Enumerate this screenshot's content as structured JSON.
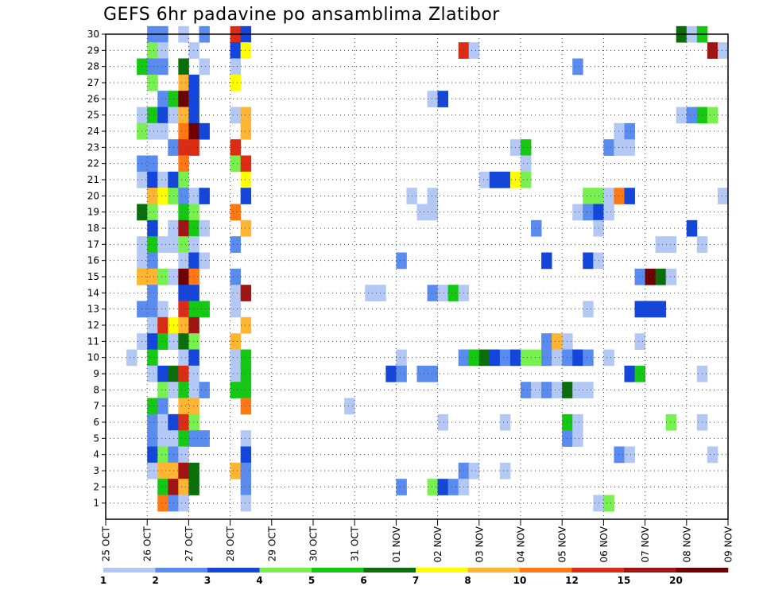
{
  "chart_data": {
    "type": "heatmap",
    "title": "GEFS 6hr padavine po ansamblima Zlatibor",
    "xlabel": "",
    "ylabel": "",
    "x_tick_labels": [
      "25 OCT",
      "26 OCT",
      "27 OCT",
      "28 OCT",
      "29 OCT",
      "30 OCT",
      "31 OCT",
      "01 NOV",
      "02 NOV",
      "03 NOV",
      "04 NOV",
      "05 NOV",
      "06 NOV",
      "07 NOV",
      "08 NOV",
      "09 NOV"
    ],
    "y_tick_labels": [
      "1",
      "2",
      "3",
      "4",
      "5",
      "6",
      "7",
      "8",
      "9",
      "10",
      "11",
      "12",
      "13",
      "14",
      "15",
      "16",
      "17",
      "18",
      "19",
      "20",
      "21",
      "22",
      "23",
      "24",
      "25",
      "26",
      "27",
      "28",
      "29",
      "30"
    ],
    "x_steps_per_day": 4,
    "n_steps": 60,
    "y_range": [
      0,
      30
    ],
    "grid": true,
    "legend_position": "bottom",
    "levels": [
      1,
      2,
      3,
      4,
      5,
      6,
      7,
      8,
      10,
      12,
      15,
      20
    ],
    "level_labels": [
      "1",
      "2",
      "3",
      "4",
      "5",
      "6",
      "7",
      "8",
      "10",
      "12",
      "15",
      "20"
    ],
    "colors": [
      "#b4c8f5",
      "#5a8cf0",
      "#1446dc",
      "#78f050",
      "#14c814",
      "#0a6e0a",
      "#ffff00",
      "#ffb432",
      "#ff7814",
      "#dc2d14",
      "#a01414",
      "#6e0000"
    ],
    "cells_note": "each cell: [step, member, class]; step = 6-hour index from 25 OCT 00Z, class = colour index 0-11",
    "cells": [
      [
        4,
        30,
        1
      ],
      [
        5,
        30,
        1
      ],
      [
        7,
        30,
        0
      ],
      [
        9,
        30,
        1
      ],
      [
        12,
        30,
        9
      ],
      [
        13,
        30,
        2
      ],
      [
        55,
        30,
        5
      ],
      [
        56,
        30,
        0
      ],
      [
        57,
        30,
        4
      ],
      [
        4,
        29,
        3
      ],
      [
        5,
        29,
        0
      ],
      [
        8,
        29,
        0
      ],
      [
        12,
        29,
        2
      ],
      [
        13,
        29,
        6
      ],
      [
        34,
        29,
        9
      ],
      [
        35,
        29,
        0
      ],
      [
        58,
        29,
        10
      ],
      [
        59,
        29,
        0
      ],
      [
        3,
        28,
        4
      ],
      [
        4,
        28,
        1
      ],
      [
        5,
        28,
        1
      ],
      [
        7,
        28,
        5
      ],
      [
        9,
        28,
        0
      ],
      [
        12,
        28,
        0
      ],
      [
        45,
        28,
        1
      ],
      [
        4,
        27,
        3
      ],
      [
        7,
        27,
        7
      ],
      [
        8,
        27,
        2
      ],
      [
        12,
        27,
        6
      ],
      [
        5,
        26,
        1
      ],
      [
        6,
        26,
        4
      ],
      [
        7,
        26,
        11
      ],
      [
        8,
        26,
        2
      ],
      [
        31,
        26,
        0
      ],
      [
        32,
        26,
        2
      ],
      [
        3,
        25,
        0
      ],
      [
        4,
        25,
        4
      ],
      [
        5,
        25,
        2
      ],
      [
        6,
        25,
        0
      ],
      [
        7,
        25,
        7
      ],
      [
        8,
        25,
        2
      ],
      [
        12,
        25,
        0
      ],
      [
        13,
        25,
        7
      ],
      [
        55,
        25,
        0
      ],
      [
        56,
        25,
        1
      ],
      [
        57,
        25,
        4
      ],
      [
        58,
        25,
        3
      ],
      [
        3,
        24,
        3
      ],
      [
        4,
        24,
        0
      ],
      [
        5,
        24,
        0
      ],
      [
        7,
        24,
        8
      ],
      [
        8,
        24,
        11
      ],
      [
        9,
        24,
        2
      ],
      [
        13,
        24,
        7
      ],
      [
        49,
        24,
        0
      ],
      [
        50,
        24,
        1
      ],
      [
        6,
        23,
        1
      ],
      [
        7,
        23,
        9
      ],
      [
        8,
        23,
        9
      ],
      [
        12,
        23,
        9
      ],
      [
        39,
        23,
        0
      ],
      [
        40,
        23,
        4
      ],
      [
        48,
        23,
        1
      ],
      [
        49,
        23,
        0
      ],
      [
        50,
        23,
        0
      ],
      [
        3,
        22,
        1
      ],
      [
        4,
        22,
        1
      ],
      [
        7,
        22,
        8
      ],
      [
        12,
        22,
        3
      ],
      [
        13,
        22,
        9
      ],
      [
        40,
        22,
        0
      ],
      [
        3,
        21,
        0
      ],
      [
        4,
        21,
        2
      ],
      [
        5,
        21,
        0
      ],
      [
        6,
        21,
        2
      ],
      [
        7,
        21,
        3
      ],
      [
        13,
        21,
        6
      ],
      [
        36,
        21,
        0
      ],
      [
        37,
        21,
        2
      ],
      [
        38,
        21,
        2
      ],
      [
        39,
        21,
        6
      ],
      [
        40,
        21,
        3
      ],
      [
        4,
        20,
        7
      ],
      [
        5,
        20,
        6
      ],
      [
        6,
        20,
        3
      ],
      [
        7,
        20,
        1
      ],
      [
        8,
        20,
        0
      ],
      [
        9,
        20,
        2
      ],
      [
        13,
        20,
        2
      ],
      [
        29,
        20,
        0
      ],
      [
        31,
        20,
        0
      ],
      [
        46,
        20,
        3
      ],
      [
        47,
        20,
        3
      ],
      [
        48,
        20,
        0
      ],
      [
        49,
        20,
        8
      ],
      [
        50,
        20,
        2
      ],
      [
        59,
        20,
        0
      ],
      [
        3,
        19,
        5
      ],
      [
        4,
        19,
        3
      ],
      [
        7,
        19,
        4
      ],
      [
        8,
        19,
        3
      ],
      [
        12,
        19,
        8
      ],
      [
        30,
        19,
        0
      ],
      [
        31,
        19,
        0
      ],
      [
        45,
        19,
        0
      ],
      [
        46,
        19,
        1
      ],
      [
        47,
        19,
        2
      ],
      [
        48,
        19,
        0
      ],
      [
        4,
        18,
        2
      ],
      [
        6,
        18,
        0
      ],
      [
        7,
        18,
        10
      ],
      [
        8,
        18,
        4
      ],
      [
        9,
        18,
        0
      ],
      [
        13,
        18,
        7
      ],
      [
        41,
        18,
        1
      ],
      [
        47,
        18,
        0
      ],
      [
        56,
        18,
        2
      ],
      [
        3,
        17,
        0
      ],
      [
        4,
        17,
        4
      ],
      [
        5,
        17,
        0
      ],
      [
        6,
        17,
        0
      ],
      [
        7,
        17,
        3
      ],
      [
        8,
        17,
        0
      ],
      [
        12,
        17,
        1
      ],
      [
        53,
        17,
        0
      ],
      [
        54,
        17,
        0
      ],
      [
        57,
        17,
        0
      ],
      [
        3,
        16,
        0
      ],
      [
        4,
        16,
        1
      ],
      [
        7,
        16,
        0
      ],
      [
        8,
        16,
        2
      ],
      [
        9,
        16,
        0
      ],
      [
        28,
        16,
        1
      ],
      [
        42,
        16,
        2
      ],
      [
        46,
        16,
        2
      ],
      [
        47,
        16,
        0
      ],
      [
        3,
        15,
        7
      ],
      [
        4,
        15,
        7
      ],
      [
        5,
        15,
        3
      ],
      [
        6,
        15,
        0
      ],
      [
        7,
        15,
        11
      ],
      [
        8,
        15,
        8
      ],
      [
        12,
        15,
        1
      ],
      [
        51,
        15,
        1
      ],
      [
        52,
        15,
        11
      ],
      [
        53,
        15,
        5
      ],
      [
        54,
        15,
        0
      ],
      [
        4,
        14,
        1
      ],
      [
        7,
        14,
        2
      ],
      [
        8,
        14,
        2
      ],
      [
        12,
        14,
        0
      ],
      [
        13,
        14,
        10
      ],
      [
        25,
        14,
        0
      ],
      [
        26,
        14,
        0
      ],
      [
        31,
        14,
        1
      ],
      [
        32,
        14,
        0
      ],
      [
        33,
        14,
        4
      ],
      [
        34,
        14,
        0
      ],
      [
        3,
        13,
        1
      ],
      [
        4,
        13,
        1
      ],
      [
        5,
        13,
        0
      ],
      [
        7,
        13,
        9
      ],
      [
        8,
        13,
        4
      ],
      [
        9,
        13,
        4
      ],
      [
        12,
        13,
        0
      ],
      [
        46,
        13,
        0
      ],
      [
        51,
        13,
        2
      ],
      [
        52,
        13,
        2
      ],
      [
        53,
        13,
        2
      ],
      [
        4,
        12,
        0
      ],
      [
        5,
        12,
        9
      ],
      [
        6,
        12,
        6
      ],
      [
        7,
        12,
        7
      ],
      [
        8,
        12,
        10
      ],
      [
        13,
        12,
        7
      ],
      [
        3,
        11,
        0
      ],
      [
        4,
        11,
        2
      ],
      [
        5,
        11,
        4
      ],
      [
        6,
        11,
        0
      ],
      [
        7,
        11,
        5
      ],
      [
        8,
        11,
        3
      ],
      [
        12,
        11,
        7
      ],
      [
        42,
        11,
        1
      ],
      [
        43,
        11,
        7
      ],
      [
        44,
        11,
        0
      ],
      [
        51,
        11,
        0
      ],
      [
        2,
        10,
        0
      ],
      [
        4,
        10,
        4
      ],
      [
        7,
        10,
        0
      ],
      [
        8,
        10,
        2
      ],
      [
        12,
        10,
        0
      ],
      [
        13,
        10,
        4
      ],
      [
        28,
        10,
        0
      ],
      [
        34,
        10,
        1
      ],
      [
        35,
        10,
        4
      ],
      [
        36,
        10,
        5
      ],
      [
        37,
        10,
        2
      ],
      [
        38,
        10,
        1
      ],
      [
        39,
        10,
        2
      ],
      [
        40,
        10,
        3
      ],
      [
        41,
        10,
        3
      ],
      [
        42,
        10,
        1
      ],
      [
        43,
        10,
        0
      ],
      [
        44,
        10,
        1
      ],
      [
        45,
        10,
        2
      ],
      [
        46,
        10,
        1
      ],
      [
        48,
        10,
        0
      ],
      [
        4,
        9,
        0
      ],
      [
        5,
        9,
        2
      ],
      [
        6,
        9,
        5
      ],
      [
        7,
        9,
        9
      ],
      [
        8,
        9,
        0
      ],
      [
        12,
        9,
        0
      ],
      [
        13,
        9,
        4
      ],
      [
        27,
        9,
        2
      ],
      [
        28,
        9,
        1
      ],
      [
        30,
        9,
        1
      ],
      [
        31,
        9,
        1
      ],
      [
        50,
        9,
        2
      ],
      [
        51,
        9,
        4
      ],
      [
        57,
        9,
        0
      ],
      [
        5,
        8,
        3
      ],
      [
        6,
        8,
        0
      ],
      [
        7,
        8,
        4
      ],
      [
        8,
        8,
        0
      ],
      [
        9,
        8,
        1
      ],
      [
        12,
        8,
        4
      ],
      [
        13,
        8,
        4
      ],
      [
        40,
        8,
        1
      ],
      [
        41,
        8,
        0
      ],
      [
        42,
        8,
        1
      ],
      [
        43,
        8,
        0
      ],
      [
        44,
        8,
        5
      ],
      [
        45,
        8,
        0
      ],
      [
        46,
        8,
        0
      ],
      [
        4,
        7,
        4
      ],
      [
        5,
        7,
        1
      ],
      [
        7,
        7,
        7
      ],
      [
        8,
        7,
        7
      ],
      [
        13,
        7,
        8
      ],
      [
        23,
        7,
        0
      ],
      [
        4,
        6,
        1
      ],
      [
        5,
        6,
        0
      ],
      [
        6,
        6,
        2
      ],
      [
        7,
        6,
        9
      ],
      [
        8,
        6,
        3
      ],
      [
        32,
        6,
        0
      ],
      [
        38,
        6,
        0
      ],
      [
        44,
        6,
        4
      ],
      [
        45,
        6,
        0
      ],
      [
        54,
        6,
        3
      ],
      [
        57,
        6,
        0
      ],
      [
        4,
        5,
        1
      ],
      [
        5,
        5,
        0
      ],
      [
        6,
        5,
        0
      ],
      [
        7,
        5,
        4
      ],
      [
        8,
        5,
        1
      ],
      [
        9,
        5,
        1
      ],
      [
        13,
        5,
        0
      ],
      [
        44,
        5,
        1
      ],
      [
        45,
        5,
        0
      ],
      [
        4,
        4,
        2
      ],
      [
        5,
        4,
        3
      ],
      [
        6,
        4,
        1
      ],
      [
        7,
        4,
        0
      ],
      [
        13,
        4,
        2
      ],
      [
        49,
        4,
        1
      ],
      [
        50,
        4,
        0
      ],
      [
        58,
        4,
        0
      ],
      [
        4,
        3,
        0
      ],
      [
        5,
        3,
        7
      ],
      [
        6,
        3,
        7
      ],
      [
        7,
        3,
        10
      ],
      [
        8,
        3,
        5
      ],
      [
        12,
        3,
        7
      ],
      [
        13,
        3,
        1
      ],
      [
        34,
        3,
        1
      ],
      [
        35,
        3,
        0
      ],
      [
        38,
        3,
        0
      ],
      [
        5,
        2,
        4
      ],
      [
        6,
        2,
        10
      ],
      [
        7,
        2,
        7
      ],
      [
        8,
        2,
        5
      ],
      [
        13,
        2,
        1
      ],
      [
        28,
        2,
        1
      ],
      [
        31,
        2,
        3
      ],
      [
        32,
        2,
        2
      ],
      [
        33,
        2,
        1
      ],
      [
        34,
        2,
        0
      ],
      [
        5,
        1,
        8
      ],
      [
        6,
        1,
        1
      ],
      [
        7,
        1,
        0
      ],
      [
        13,
        1,
        0
      ],
      [
        47,
        1,
        0
      ],
      [
        48,
        1,
        3
      ]
    ]
  }
}
